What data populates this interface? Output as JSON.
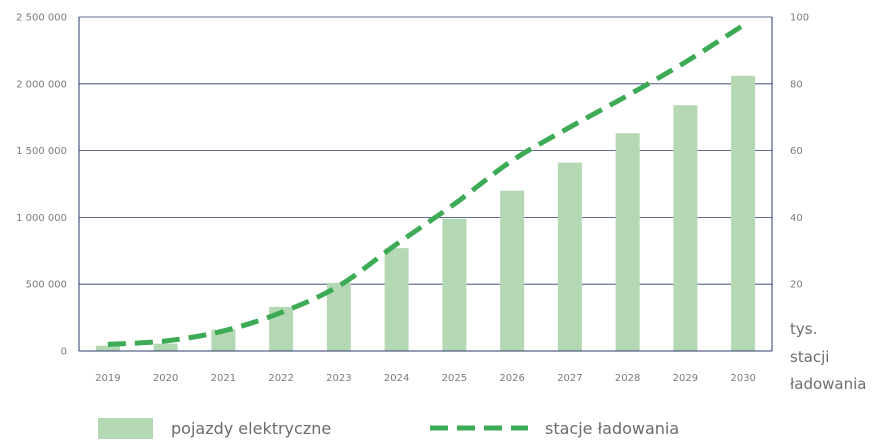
{
  "chart_data": {
    "type": "bar+line",
    "categories": [
      "2019",
      "2020",
      "2021",
      "2022",
      "2023",
      "2024",
      "2025",
      "2026",
      "2027",
      "2028",
      "2029",
      "2030"
    ],
    "series": [
      {
        "name": "pojazdy elektryczne",
        "type": "bar",
        "axis": "left",
        "values": [
          40000,
          55000,
          160000,
          330000,
          510000,
          770000,
          990000,
          1200000,
          1410000,
          1630000,
          1840000,
          2060000
        ]
      },
      {
        "name": "stacje ładowania",
        "type": "line",
        "style": "dashed",
        "axis": "right",
        "values": [
          2,
          3,
          6,
          11.5,
          19.5,
          32,
          44,
          57,
          67,
          76.5,
          86.5,
          97.5
        ]
      }
    ],
    "yleft": {
      "range": [
        0,
        2500000
      ],
      "ticks": [
        0,
        500000,
        1000000,
        1500000,
        2000000,
        2500000
      ],
      "tick_labels": [
        "0",
        "500 000",
        "1 000 000",
        "1 500 000",
        "2 000 000",
        "2 500 000"
      ]
    },
    "yright": {
      "range": [
        0,
        100
      ],
      "ticks": [
        20,
        40,
        60,
        80,
        100
      ],
      "tick_labels": [
        "20",
        "40",
        "60",
        "80",
        "100"
      ],
      "unit_label": [
        "tys.",
        "stacji",
        "ładowania"
      ]
    },
    "grid": true,
    "legend_position": "bottom",
    "colors": {
      "bar": "#b3d8b3",
      "line": "#3dab56",
      "grid": "#2e3a6e",
      "text": "#7a7a7a"
    }
  },
  "legend": {
    "bar_label": "pojazdy elektryczne",
    "line_label": "stacje ładowania"
  }
}
